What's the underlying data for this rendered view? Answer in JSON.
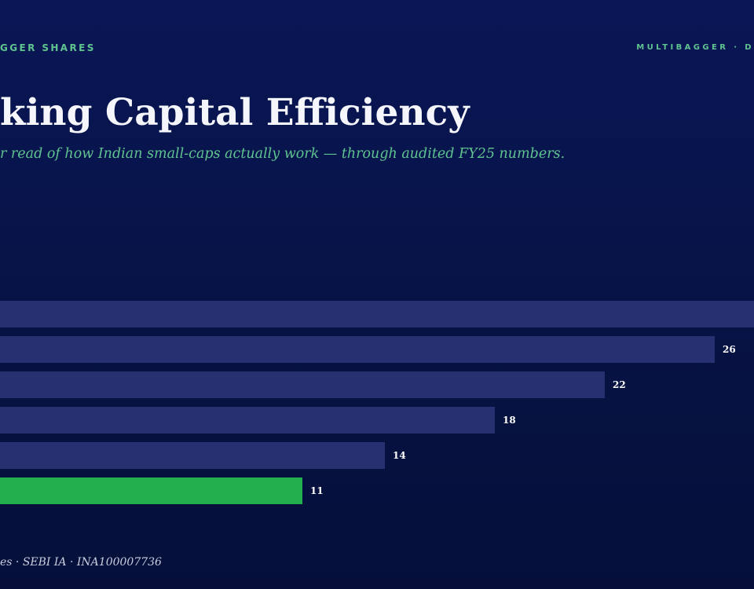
{
  "header": {
    "brand_left": "GGER SHARES",
    "brand_right": "MULTIBAGGER · D"
  },
  "title": "king Capital Efficiency",
  "subtitle": "r read of how Indian small-caps actually work — through audited FY25 numbers.",
  "footer": "es · SEBI IA · INA100007736",
  "colors": {
    "background": "#071344",
    "accent": "#5fc490",
    "bar": "#273070",
    "highlight_bar": "#22b04e",
    "value_label": "#ffffff"
  },
  "chart_data": {
    "type": "bar",
    "orientation": "horizontal",
    "values": [
      30,
      26,
      22,
      18,
      14,
      11
    ],
    "value_labels": [
      "",
      "26",
      "22",
      "18",
      "14",
      "11"
    ],
    "highlight_index": 5,
    "xlim": [
      0,
      30
    ],
    "grid": false
  }
}
